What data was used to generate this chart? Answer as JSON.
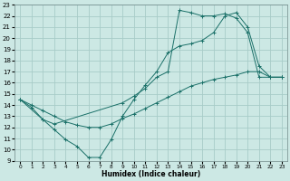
{
  "xlabel": "Humidex (Indice chaleur)",
  "bg_color": "#cce8e4",
  "grid_color": "#a8ccc8",
  "line_color": "#1a7068",
  "xlim": [
    0,
    23
  ],
  "ylim": [
    9,
    23
  ],
  "xticks": [
    0,
    1,
    2,
    3,
    4,
    5,
    6,
    7,
    8,
    9,
    10,
    11,
    12,
    13,
    14,
    15,
    16,
    17,
    18,
    19,
    20,
    21,
    22,
    23
  ],
  "yticks": [
    9,
    10,
    11,
    12,
    13,
    14,
    15,
    16,
    17,
    18,
    19,
    20,
    21,
    22,
    23
  ],
  "line1_x": [
    0,
    1,
    2,
    3,
    4,
    5,
    6,
    7,
    8,
    9,
    10,
    11,
    12,
    13,
    14,
    15,
    16,
    17,
    18,
    19,
    20,
    21,
    22,
    23
  ],
  "line1_y": [
    14.5,
    13.8,
    12.7,
    11.8,
    10.9,
    10.3,
    9.3,
    9.3,
    10.9,
    13.0,
    14.5,
    15.8,
    17.0,
    18.7,
    19.3,
    19.5,
    19.8,
    20.5,
    22.0,
    22.3,
    21.0,
    17.5,
    16.5,
    16.5
  ],
  "line2_x": [
    0,
    2,
    3,
    9,
    10,
    11,
    12,
    13,
    14,
    15,
    16,
    17,
    18,
    19,
    20,
    21,
    22,
    23
  ],
  "line2_y": [
    14.5,
    12.7,
    12.3,
    14.2,
    14.8,
    15.5,
    16.5,
    17.0,
    22.5,
    22.3,
    22.0,
    22.0,
    22.2,
    21.8,
    20.5,
    16.5,
    16.5,
    16.5
  ],
  "line3_x": [
    0,
    1,
    2,
    3,
    4,
    5,
    6,
    7,
    8,
    9,
    10,
    11,
    12,
    13,
    14,
    15,
    16,
    17,
    18,
    19,
    20,
    21,
    22,
    23
  ],
  "line3_y": [
    14.5,
    14.0,
    13.5,
    13.0,
    12.5,
    12.2,
    12.0,
    12.0,
    12.3,
    12.8,
    13.2,
    13.7,
    14.2,
    14.7,
    15.2,
    15.7,
    16.0,
    16.3,
    16.5,
    16.7,
    17.0,
    17.0,
    16.5,
    16.5
  ]
}
